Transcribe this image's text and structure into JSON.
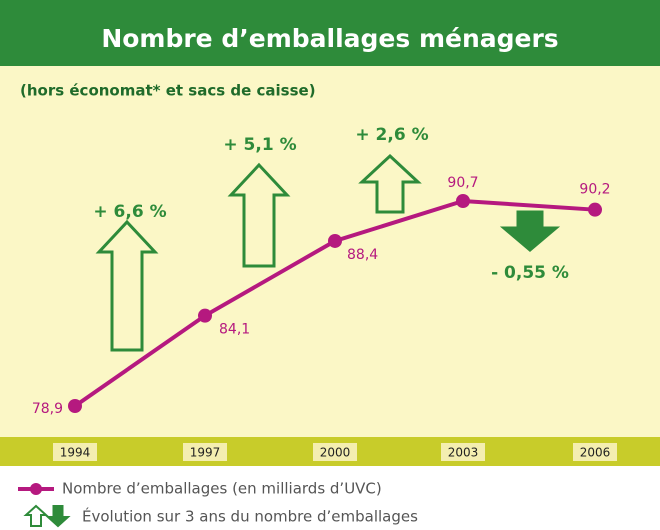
{
  "chart_data": {
    "type": "line",
    "title": "Nombre d’emballages ménagers",
    "subtitle": "(hors économat* et sacs de caisse)",
    "categories": [
      "1994",
      "1997",
      "2000",
      "2003",
      "2006"
    ],
    "series": [
      {
        "name": "Nombre d’emballages (en milliards d’UVC)",
        "color": "#b5197f",
        "values": [
          78.9,
          84.1,
          88.4,
          90.7,
          90.2
        ],
        "value_labels": [
          "78,9",
          "84,1",
          "88,4",
          "90,7",
          "90,2"
        ]
      }
    ],
    "annotations": [
      "+ 6,6 %",
      "+ 5,1 %",
      "+ 2,6 %",
      "- 0,55 %"
    ],
    "legend_note": "Évolution sur 3 ans du nombre d’emballages",
    "arrow_color": "#2e8b3a"
  }
}
